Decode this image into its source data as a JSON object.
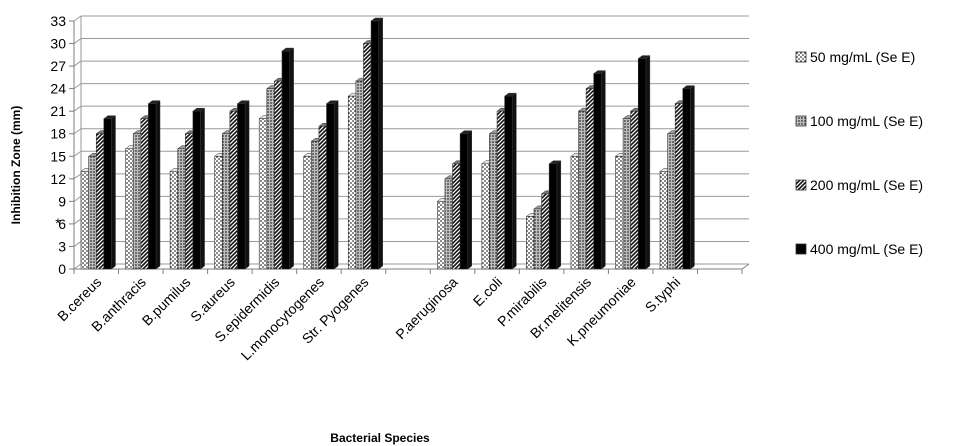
{
  "chart_data": {
    "type": "bar",
    "title": "",
    "xlabel": "Bacterial Species",
    "ylabel": "Inhibition Zone (mm)",
    "ylim": [
      0,
      33
    ],
    "yticks": [
      0,
      3,
      6,
      9,
      12,
      15,
      18,
      21,
      24,
      27,
      30,
      33
    ],
    "grid": true,
    "legend_position": "right",
    "categories": [
      "B.cereus",
      "B.anthracis",
      "B.pumilus",
      "S.aureus",
      "S.epidermidis",
      "L.monocytogenes",
      "Str. Pyogenes",
      "",
      "P.aeruginosa",
      "E.coli",
      "P.mirabilis",
      "Br.melitensis",
      "K.pneumoniae",
      "S.typhi",
      ""
    ],
    "series": [
      {
        "name": "50 mg/mL (Se E)",
        "pattern": "dots",
        "values": [
          13,
          16,
          13,
          15,
          20,
          15,
          23,
          null,
          9,
          14,
          7,
          15,
          15,
          13,
          null
        ]
      },
      {
        "name": "100 mg/mL (Se E)",
        "pattern": "dense-dots",
        "values": [
          15,
          18,
          16,
          18,
          24,
          17,
          25,
          null,
          12,
          18,
          8,
          21,
          20,
          18,
          null
        ]
      },
      {
        "name": "200 mg/mL (Se E)",
        "pattern": "diagonal",
        "values": [
          18,
          20,
          18,
          21,
          25,
          19,
          30,
          null,
          14,
          21,
          10,
          24,
          21,
          22,
          null
        ]
      },
      {
        "name": "400 mg/mL (Se E)",
        "pattern": "solid",
        "values": [
          20,
          22,
          21,
          22,
          29,
          22,
          33,
          null,
          18,
          23,
          14,
          26,
          28,
          24,
          null
        ]
      }
    ],
    "annotation": "*"
  }
}
